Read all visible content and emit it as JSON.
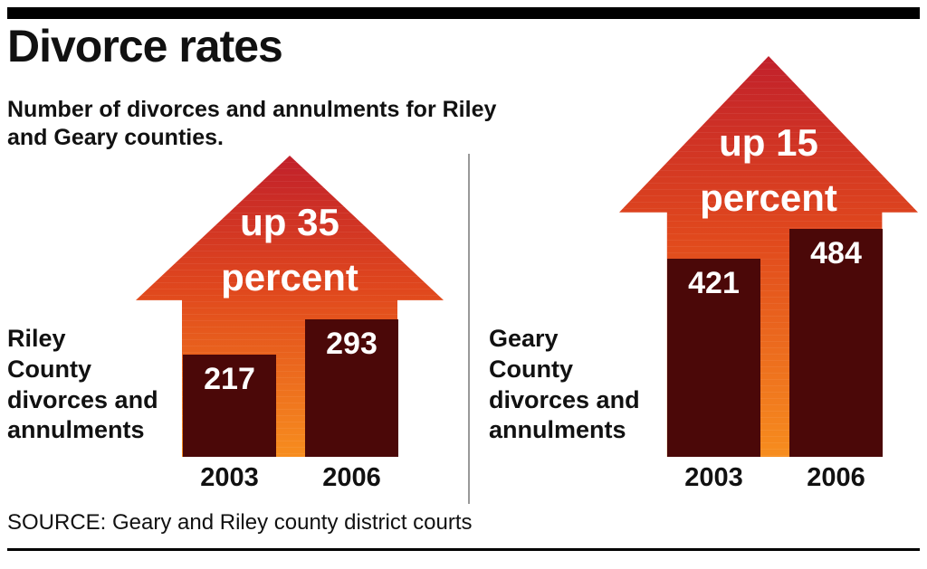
{
  "header": {
    "title": "Divorce rates",
    "subtitle_line1": "Number of divorces and annulments for Riley",
    "subtitle_line2": "and Geary counties."
  },
  "chart_data": {
    "type": "bar",
    "title": "Divorce rates",
    "subtitle": "Number of divorces and annulments for Riley and Geary counties.",
    "categories": [
      "2003",
      "2006"
    ],
    "series": [
      {
        "name": "Riley County divorces and annulments",
        "values": [
          217,
          293
        ],
        "annotation": "up 35 percent",
        "annotation_lines": [
          "up 35",
          "percent"
        ],
        "label_lines": [
          "Riley",
          "County",
          "divorces and",
          "annulments"
        ]
      },
      {
        "name": "Geary County divorces and annulments",
        "values": [
          421,
          484
        ],
        "annotation": "up 15 percent",
        "annotation_lines": [
          "up 15",
          "percent"
        ],
        "label_lines": [
          "Geary",
          "County",
          "divorces and",
          "annulments"
        ]
      }
    ],
    "xlabel": "",
    "ylabel": "",
    "value_labels_shown": true,
    "legend": "none",
    "grid": false
  },
  "source": {
    "text": "SOURCE: Geary and Riley county district courts"
  },
  "colors": {
    "bar": "#4b0808",
    "arrow_top": "#c1202b",
    "arrow_mid": "#e0481d",
    "arrow_bottom": "#f78d1e",
    "text_light": "#ffffff",
    "text_dark": "#111111",
    "divider": "#999999",
    "rule": "#000000"
  }
}
